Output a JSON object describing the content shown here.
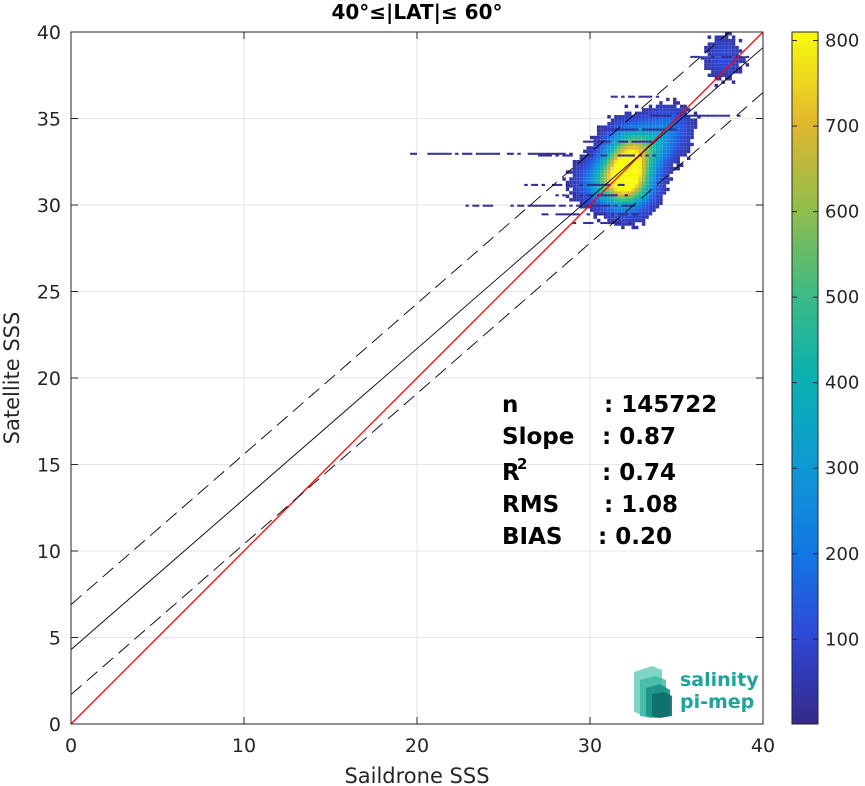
{
  "chart_data": {
    "type": "heatmap",
    "title": "40°≤|LAT|≤ 60°",
    "xlabel": "Saildrone SSS",
    "ylabel": "Satellite SSS",
    "xlim": [
      0,
      40
    ],
    "ylim": [
      0,
      40
    ],
    "xticks": [
      "0",
      "10",
      "20",
      "30",
      "40"
    ],
    "yticks": [
      "0",
      "5",
      "10",
      "15",
      "20",
      "25",
      "30",
      "35",
      "40"
    ],
    "grid": true,
    "colorbar": {
      "range": [
        1,
        810
      ],
      "ticks": [
        "100",
        "200",
        "300",
        "400",
        "500",
        "600",
        "700",
        "800"
      ],
      "colormap": "parula"
    },
    "lines": [
      {
        "role": "one-to-one",
        "color": "#ff0000",
        "style": "solid",
        "slope": 1.0,
        "intercept": 0.0
      },
      {
        "role": "regression",
        "color": "#000000",
        "style": "solid",
        "slope": 0.87,
        "intercept": 4.3
      },
      {
        "role": "regression-plus-sigma",
        "color": "#000000",
        "style": "dashed",
        "slope": 0.87,
        "intercept": 6.9
      },
      {
        "role": "regression-minus-sigma",
        "color": "#000000",
        "style": "dashed",
        "slope": 0.87,
        "intercept": 1.7
      }
    ],
    "density_clusters": [
      {
        "x": 32.1,
        "y": 32.0,
        "sx": 0.9,
        "sy": 1.3,
        "peak": 810
      },
      {
        "x": 31.3,
        "y": 31.2,
        "sx": 1.2,
        "sy": 0.9,
        "peak": 420
      },
      {
        "x": 33.3,
        "y": 33.3,
        "sx": 1.0,
        "sy": 0.8,
        "peak": 300
      },
      {
        "x": 34.5,
        "y": 34.5,
        "sx": 0.9,
        "sy": 0.8,
        "peak": 150
      },
      {
        "x": 37.6,
        "y": 38.4,
        "sx": 0.8,
        "sy": 0.9,
        "peak": 110
      }
    ],
    "streak_rows": [
      {
        "y": 32.9,
        "x0": 19.2,
        "x1": 29.0
      },
      {
        "y": 32.8,
        "x0": 27.0,
        "x1": 34.0
      },
      {
        "y": 31.1,
        "x0": 26.2,
        "x1": 31.8
      },
      {
        "y": 30.5,
        "x0": 28.0,
        "x1": 32.0
      },
      {
        "y": 29.9,
        "x0": 22.8,
        "x1": 32.5
      },
      {
        "y": 29.4,
        "x0": 27.2,
        "x1": 32.8
      },
      {
        "y": 28.9,
        "x0": 28.6,
        "x1": 32.2
      },
      {
        "y": 33.6,
        "x0": 29.6,
        "x1": 34.4
      },
      {
        "y": 34.3,
        "x0": 30.6,
        "x1": 35.0
      },
      {
        "y": 36.2,
        "x0": 31.2,
        "x1": 34.0
      },
      {
        "y": 35.1,
        "x0": 33.5,
        "x1": 38.6
      },
      {
        "y": 38.5,
        "x0": 35.8,
        "x1": 39.2
      }
    ],
    "stats": [
      {
        "label": "n",
        "value": ": 145722"
      },
      {
        "label": "Slope",
        "value": ": 0.87"
      },
      {
        "label": "R",
        "superscript": "2",
        "value": ": 0.74"
      },
      {
        "label": "RMS",
        "value": ": 1.08"
      },
      {
        "label": "BIAS",
        "value": ": 0.20"
      }
    ]
  },
  "logo": {
    "line1": "salinity",
    "line2": "pi-mep"
  }
}
